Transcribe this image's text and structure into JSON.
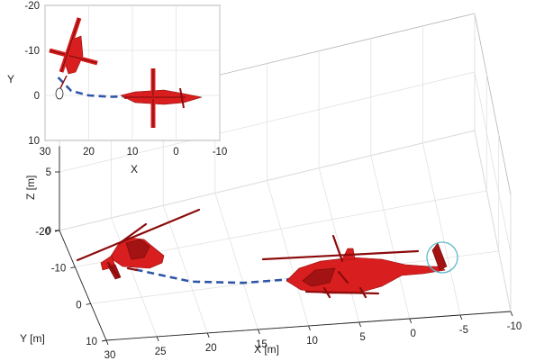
{
  "colors": {
    "helicopter": "#d81e1e",
    "trajectory": "#2f55a8",
    "tail_rotor_highlight": "#5fb7c9",
    "grid": "#e2e2e2"
  },
  "chart_data": [
    {
      "type": "scatter",
      "view": "3d",
      "xlabel": "X [m]",
      "ylabel": "Y [m]",
      "zlabel": "Z [m]",
      "x_ticks": [
        "30",
        "25",
        "20",
        "15",
        "10",
        "5",
        "0",
        "-5",
        "-10"
      ],
      "y_ticks": [
        "-20",
        "-10",
        "0",
        "10"
      ],
      "z_ticks": [
        "5",
        "0"
      ],
      "xlim": [
        -10,
        30
      ],
      "ylim": [
        -20,
        10
      ],
      "zlim": [
        0,
        5
      ],
      "grid": true,
      "series": [
        {
          "x": [
            25,
            20,
            15,
            10,
            6,
            3
          ],
          "y": [
            -4,
            -1,
            0,
            0.3,
            0.2,
            0
          ],
          "z": [
            1,
            0.4,
            0.1,
            0,
            0,
            0
          ]
        }
      ],
      "objects": [
        "approaching helicopter near X≈27",
        "landed helicopter near X≈5, Y≈0"
      ]
    },
    {
      "type": "scatter",
      "view": "top",
      "xlabel": "X",
      "ylabel": "Y",
      "x_ticks": [
        "30",
        "20",
        "10",
        "0",
        "-10"
      ],
      "y_ticks": [
        "-20",
        "-10",
        "0",
        "10"
      ],
      "xlim": [
        30,
        -10
      ],
      "ylim": [
        -20,
        10
      ],
      "grid": true,
      "series": [
        {
          "x": [
            27,
            24,
            20,
            15,
            10,
            5
          ],
          "y": [
            -4,
            -1,
            0,
            0.3,
            0.2,
            0
          ]
        }
      ]
    }
  ]
}
